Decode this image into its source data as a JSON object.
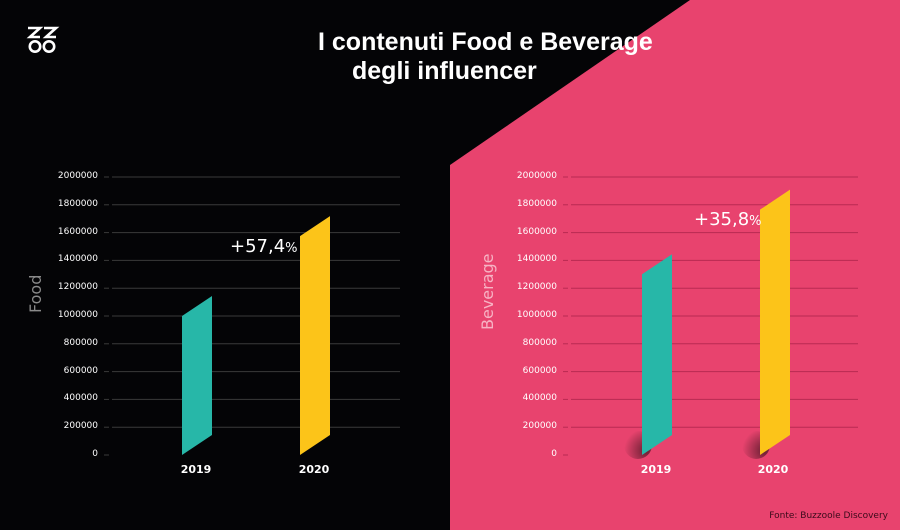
{
  "header": {
    "logo": "zz-infinity-logo",
    "title_line1": "I contenuti Food e Beverage",
    "title_line2": "degli influencer"
  },
  "colors": {
    "background_dark": "#040406",
    "background_pink": "#e8436e",
    "bar_2019": "#27b7a8",
    "bar_2020": "#fcc419",
    "grid_dark": "#3a3a3a",
    "grid_pink": "#b92a52"
  },
  "footer": {
    "source": "Fonte: Buzzoole Discovery"
  },
  "chart_data": [
    {
      "type": "bar",
      "title": "Food",
      "ylabel": "Food",
      "xlabel": "",
      "categories": [
        "2019",
        "2020"
      ],
      "values": [
        1000000,
        1575000
      ],
      "ylim": [
        0,
        2000000
      ],
      "yticks": [
        "2000000",
        "1800000",
        "1600000",
        "1400000",
        "1200000",
        "1000000",
        "800000",
        "600000",
        "400000",
        "200000",
        "0"
      ],
      "grid": true,
      "annotations": [
        {
          "text": "+57,4",
          "suffix": "%",
          "target": "2020"
        }
      ]
    },
    {
      "type": "bar",
      "title": "Beverage",
      "ylabel": "Beverage",
      "xlabel": "",
      "categories": [
        "2019",
        "2020"
      ],
      "values": [
        1300000,
        1765000
      ],
      "ylim": [
        0,
        2000000
      ],
      "yticks": [
        "2000000",
        "1800000",
        "1600000",
        "1400000",
        "1200000",
        "1000000",
        "800000",
        "600000",
        "400000",
        "200000",
        "0"
      ],
      "grid": true,
      "annotations": [
        {
          "text": "+35,8",
          "suffix": "%",
          "target": "2020"
        }
      ]
    }
  ]
}
